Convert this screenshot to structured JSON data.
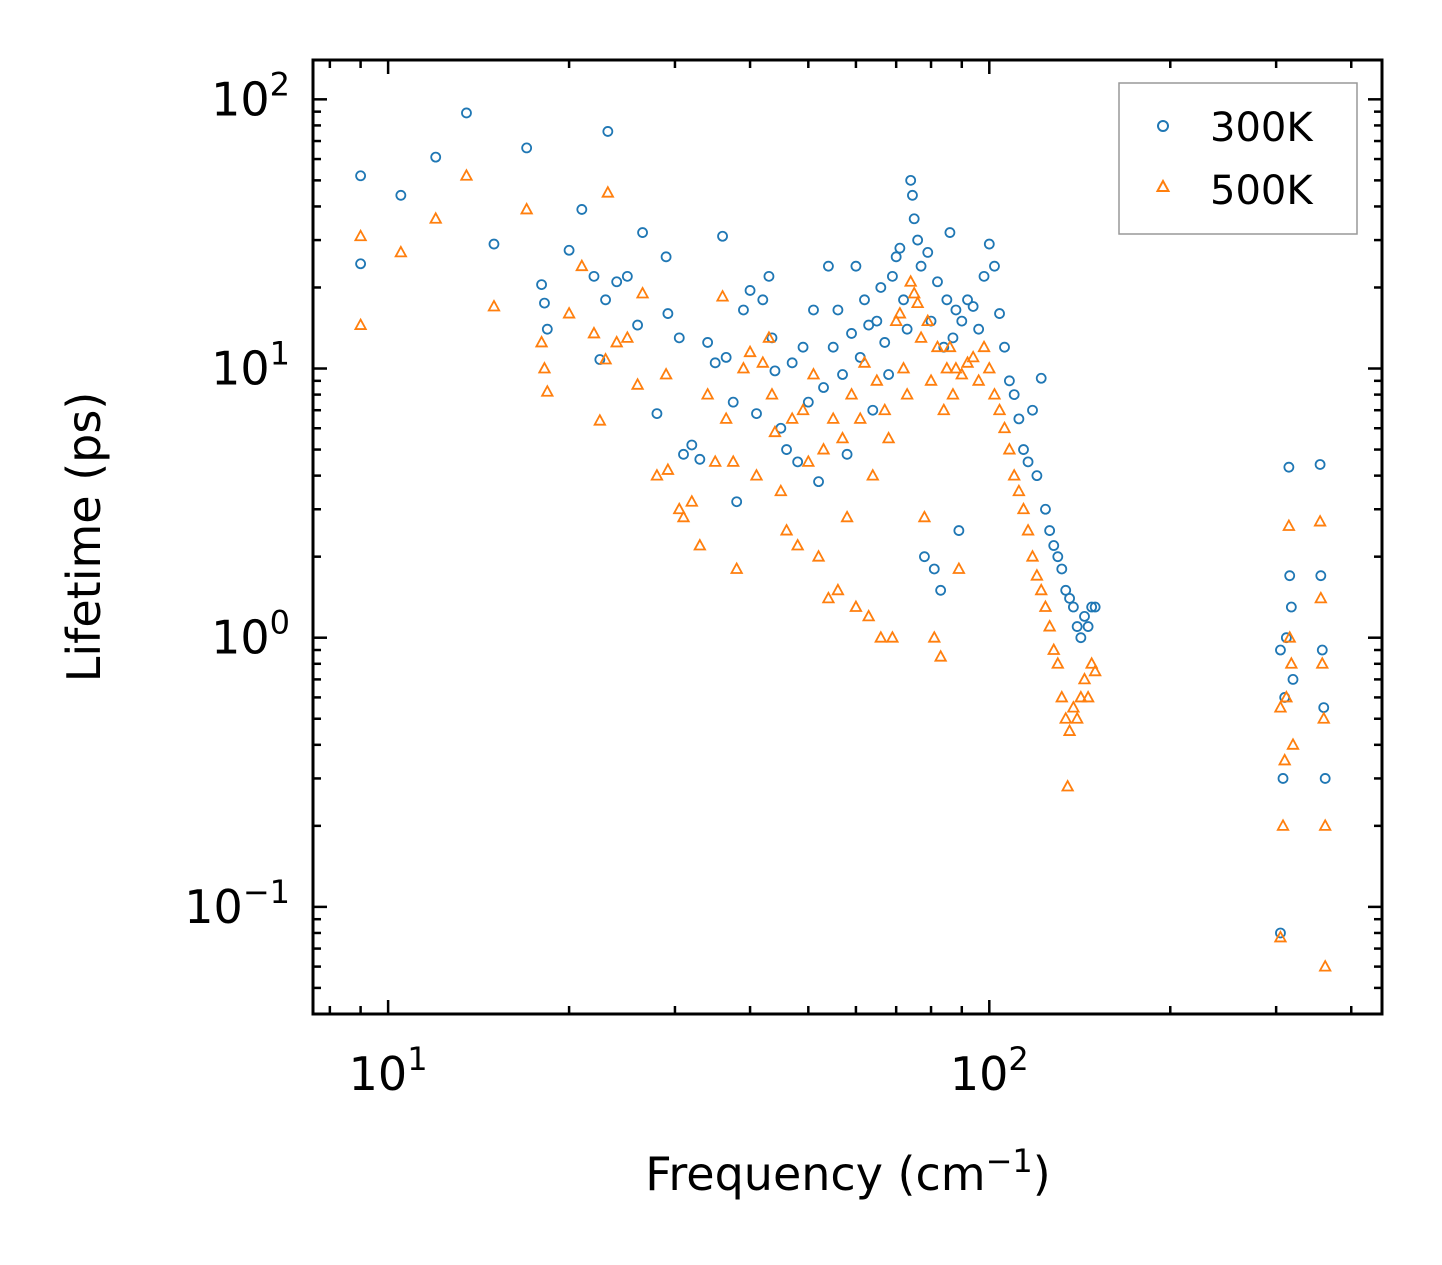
{
  "chart_data": {
    "type": "scatter",
    "title": "",
    "xlabel": "Frequency (cm",
    "xlabel_superscript": "−1",
    "xlabel_suffix": ")",
    "ylabel": "Lifetime (ps)",
    "xscale": "log",
    "yscale": "log",
    "xlim": [
      7.5,
      450
    ],
    "ylim": [
      0.04,
      140
    ],
    "xticks": [
      {
        "value": 10,
        "base": "10",
        "exp": "1"
      },
      {
        "value": 100,
        "base": "10",
        "exp": "2"
      }
    ],
    "yticks": [
      {
        "value": 0.1,
        "base": "10",
        "exp": "−1"
      },
      {
        "value": 1,
        "base": "10",
        "exp": "0"
      },
      {
        "value": 10,
        "base": "10",
        "exp": "1"
      },
      {
        "value": 100,
        "base": "10",
        "exp": "2"
      }
    ],
    "legend_position": "top-right",
    "series": [
      {
        "name": "300K",
        "color": "#1f77b4",
        "marker": "circle",
        "points": [
          [
            9.0,
            52
          ],
          [
            9.0,
            24.5
          ],
          [
            10.5,
            44
          ],
          [
            12.0,
            61
          ],
          [
            13.5,
            89
          ],
          [
            15.0,
            29
          ],
          [
            17.0,
            66
          ],
          [
            18.0,
            20.5
          ],
          [
            18.2,
            17.5
          ],
          [
            18.4,
            14.0
          ],
          [
            20.0,
            27.5
          ],
          [
            21.0,
            39
          ],
          [
            22.0,
            22.0
          ],
          [
            22.5,
            10.8
          ],
          [
            23.0,
            18.0
          ],
          [
            23.2,
            76
          ],
          [
            24.0,
            21.0
          ],
          [
            25.0,
            22.0
          ],
          [
            26.0,
            14.5
          ],
          [
            26.5,
            32
          ],
          [
            28.0,
            6.8
          ],
          [
            29.0,
            26.0
          ],
          [
            29.2,
            16.0
          ],
          [
            30.5,
            13.0
          ],
          [
            31.0,
            4.8
          ],
          [
            32.0,
            5.2
          ],
          [
            33.0,
            4.6
          ],
          [
            34.0,
            12.5
          ],
          [
            35.0,
            10.5
          ],
          [
            36.0,
            31
          ],
          [
            36.5,
            11.0
          ],
          [
            37.5,
            7.5
          ],
          [
            38.0,
            3.2
          ],
          [
            39.0,
            16.5
          ],
          [
            40.0,
            19.5
          ],
          [
            41.0,
            6.8
          ],
          [
            42.0,
            18.0
          ],
          [
            43.0,
            22.0
          ],
          [
            43.5,
            13.0
          ],
          [
            44.0,
            9.8
          ],
          [
            45.0,
            6.0
          ],
          [
            46.0,
            5.0
          ],
          [
            47.0,
            10.5
          ],
          [
            48.0,
            4.5
          ],
          [
            49.0,
            12.0
          ],
          [
            50.0,
            7.5
          ],
          [
            51.0,
            16.5
          ],
          [
            52.0,
            3.8
          ],
          [
            53.0,
            8.5
          ],
          [
            54.0,
            24.0
          ],
          [
            55.0,
            12.0
          ],
          [
            56.0,
            16.5
          ],
          [
            57.0,
            9.5
          ],
          [
            58.0,
            4.8
          ],
          [
            59.0,
            13.5
          ],
          [
            60.0,
            24.0
          ],
          [
            61.0,
            11.0
          ],
          [
            62.0,
            18.0
          ],
          [
            63.0,
            14.5
          ],
          [
            64.0,
            7.0
          ],
          [
            65.0,
            15.0
          ],
          [
            66.0,
            20.0
          ],
          [
            67.0,
            12.5
          ],
          [
            68.0,
            9.5
          ],
          [
            69.0,
            22.0
          ],
          [
            70.0,
            26.0
          ],
          [
            71.0,
            28.0
          ],
          [
            72.0,
            18.0
          ],
          [
            73.0,
            14.0
          ],
          [
            74.0,
            50
          ],
          [
            74.5,
            44
          ],
          [
            75.0,
            36
          ],
          [
            76.0,
            30
          ],
          [
            77.0,
            24.0
          ],
          [
            78.0,
            2.0
          ],
          [
            79.0,
            27.0
          ],
          [
            80.0,
            15.0
          ],
          [
            81.0,
            1.8
          ],
          [
            82.0,
            21.0
          ],
          [
            83.0,
            1.5
          ],
          [
            84.0,
            12.0
          ],
          [
            85.0,
            18.0
          ],
          [
            86.0,
            32
          ],
          [
            87.0,
            13.0
          ],
          [
            88.0,
            16.5
          ],
          [
            89.0,
            2.5
          ],
          [
            90.0,
            15.0
          ],
          [
            92.0,
            18.0
          ],
          [
            94.0,
            17.0
          ],
          [
            96.0,
            14.0
          ],
          [
            98.0,
            22.0
          ],
          [
            100.0,
            29.0
          ],
          [
            102.0,
            24.0
          ],
          [
            104.0,
            16.0
          ],
          [
            106.0,
            12.0
          ],
          [
            108.0,
            9.0
          ],
          [
            110.0,
            8.0
          ],
          [
            112.0,
            6.5
          ],
          [
            114.0,
            5.0
          ],
          [
            116.0,
            4.5
          ],
          [
            118.0,
            7.0
          ],
          [
            120.0,
            4.0
          ],
          [
            122.0,
            9.2
          ],
          [
            124.0,
            3.0
          ],
          [
            126.0,
            2.5
          ],
          [
            128.0,
            2.2
          ],
          [
            130.0,
            2.0
          ],
          [
            132.0,
            1.8
          ],
          [
            134.0,
            1.5
          ],
          [
            136.0,
            1.4
          ],
          [
            138.0,
            1.3
          ],
          [
            140.0,
            1.1
          ],
          [
            142.0,
            1.0
          ],
          [
            144.0,
            1.2
          ],
          [
            146.0,
            1.1
          ],
          [
            148.0,
            1.3
          ],
          [
            150.0,
            1.3
          ],
          [
            305.0,
            0.9
          ],
          [
            305.0,
            0.08
          ],
          [
            308.0,
            0.3
          ],
          [
            310.0,
            0.6
          ],
          [
            312.0,
            1.0
          ],
          [
            315.0,
            4.3
          ],
          [
            316.0,
            1.7
          ],
          [
            318.0,
            1.3
          ],
          [
            320.0,
            0.7
          ],
          [
            355.0,
            4.4
          ],
          [
            356.0,
            1.7
          ],
          [
            358.0,
            0.9
          ],
          [
            360.0,
            0.55
          ],
          [
            362.0,
            0.3
          ]
        ]
      },
      {
        "name": "500K",
        "color": "#ff7f0e",
        "marker": "triangle",
        "points": [
          [
            9.0,
            31
          ],
          [
            9.0,
            14.5
          ],
          [
            10.5,
            27
          ],
          [
            12.0,
            36
          ],
          [
            13.5,
            52
          ],
          [
            15.0,
            17.0
          ],
          [
            17.0,
            39
          ],
          [
            18.0,
            12.5
          ],
          [
            18.2,
            10.0
          ],
          [
            18.4,
            8.2
          ],
          [
            20.0,
            16.0
          ],
          [
            21.0,
            24.0
          ],
          [
            22.0,
            13.5
          ],
          [
            22.5,
            6.4
          ],
          [
            23.0,
            10.8
          ],
          [
            23.2,
            45
          ],
          [
            24.0,
            12.5
          ],
          [
            25.0,
            13.0
          ],
          [
            26.0,
            8.7
          ],
          [
            26.5,
            19.0
          ],
          [
            28.0,
            4.0
          ],
          [
            29.0,
            9.5
          ],
          [
            29.2,
            4.2
          ],
          [
            30.5,
            3.0
          ],
          [
            31.0,
            2.8
          ],
          [
            32.0,
            3.2
          ],
          [
            33.0,
            2.2
          ],
          [
            34.0,
            8.0
          ],
          [
            35.0,
            4.5
          ],
          [
            36.0,
            18.5
          ],
          [
            36.5,
            6.5
          ],
          [
            37.5,
            4.5
          ],
          [
            38.0,
            1.8
          ],
          [
            39.0,
            10.0
          ],
          [
            40.0,
            11.5
          ],
          [
            41.0,
            4.0
          ],
          [
            42.0,
            10.5
          ],
          [
            43.0,
            13.0
          ],
          [
            43.5,
            8.0
          ],
          [
            44.0,
            5.8
          ],
          [
            45.0,
            3.5
          ],
          [
            46.0,
            2.5
          ],
          [
            47.0,
            6.5
          ],
          [
            48.0,
            2.2
          ],
          [
            49.0,
            7.0
          ],
          [
            50.0,
            4.5
          ],
          [
            51.0,
            9.5
          ],
          [
            52.0,
            2.0
          ],
          [
            53.0,
            5.0
          ],
          [
            54.0,
            1.4
          ],
          [
            55.0,
            6.5
          ],
          [
            56.0,
            1.5
          ],
          [
            57.0,
            5.5
          ],
          [
            58.0,
            2.8
          ],
          [
            59.0,
            8.0
          ],
          [
            60.0,
            1.3
          ],
          [
            61.0,
            6.5
          ],
          [
            62.0,
            10.5
          ],
          [
            63.0,
            1.2
          ],
          [
            64.0,
            4.0
          ],
          [
            65.0,
            9.0
          ],
          [
            66.0,
            1.0
          ],
          [
            67.0,
            7.0
          ],
          [
            68.0,
            5.5
          ],
          [
            69.0,
            1.0
          ],
          [
            70.0,
            15.0
          ],
          [
            71.0,
            16.0
          ],
          [
            72.0,
            10.0
          ],
          [
            73.0,
            8.0
          ],
          [
            74.0,
            21.0
          ],
          [
            75.0,
            19.0
          ],
          [
            76.0,
            17.5
          ],
          [
            77.0,
            13.0
          ],
          [
            78.0,
            2.8
          ],
          [
            79.0,
            15.0
          ],
          [
            80.0,
            9.0
          ],
          [
            81.0,
            1.0
          ],
          [
            82.0,
            12.0
          ],
          [
            83.0,
            0.85
          ],
          [
            84.0,
            7.0
          ],
          [
            85.0,
            10.0
          ],
          [
            86.0,
            12.0
          ],
          [
            87.0,
            8.0
          ],
          [
            88.0,
            10.0
          ],
          [
            89.0,
            1.8
          ],
          [
            90.0,
            9.5
          ],
          [
            92.0,
            10.5
          ],
          [
            94.0,
            11.0
          ],
          [
            96.0,
            9.0
          ],
          [
            98.0,
            12.0
          ],
          [
            100.0,
            10.0
          ],
          [
            102.0,
            8.0
          ],
          [
            104.0,
            7.0
          ],
          [
            106.0,
            6.0
          ],
          [
            108.0,
            5.0
          ],
          [
            110.0,
            4.0
          ],
          [
            112.0,
            3.5
          ],
          [
            114.0,
            3.0
          ],
          [
            116.0,
            2.5
          ],
          [
            118.0,
            2.0
          ],
          [
            120.0,
            1.7
          ],
          [
            122.0,
            1.5
          ],
          [
            124.0,
            1.3
          ],
          [
            126.0,
            1.1
          ],
          [
            128.0,
            0.9
          ],
          [
            130.0,
            0.8
          ],
          [
            132.0,
            0.6
          ],
          [
            134.0,
            0.5
          ],
          [
            135.0,
            0.28
          ],
          [
            136.0,
            0.45
          ],
          [
            138.0,
            0.55
          ],
          [
            140.0,
            0.5
          ],
          [
            142.0,
            0.6
          ],
          [
            144.0,
            0.7
          ],
          [
            146.0,
            0.6
          ],
          [
            148.0,
            0.8
          ],
          [
            150.0,
            0.75
          ],
          [
            305.0,
            0.55
          ],
          [
            305.0,
            0.077
          ],
          [
            308.0,
            0.2
          ],
          [
            310.0,
            0.35
          ],
          [
            312.0,
            0.6
          ],
          [
            315.0,
            2.6
          ],
          [
            316.0,
            1.0
          ],
          [
            318.0,
            0.8
          ],
          [
            320.0,
            0.4
          ],
          [
            355.0,
            2.7
          ],
          [
            356.0,
            1.4
          ],
          [
            358.0,
            0.8
          ],
          [
            360.0,
            0.5
          ],
          [
            362.0,
            0.2
          ],
          [
            362.0,
            0.06
          ]
        ]
      }
    ]
  }
}
